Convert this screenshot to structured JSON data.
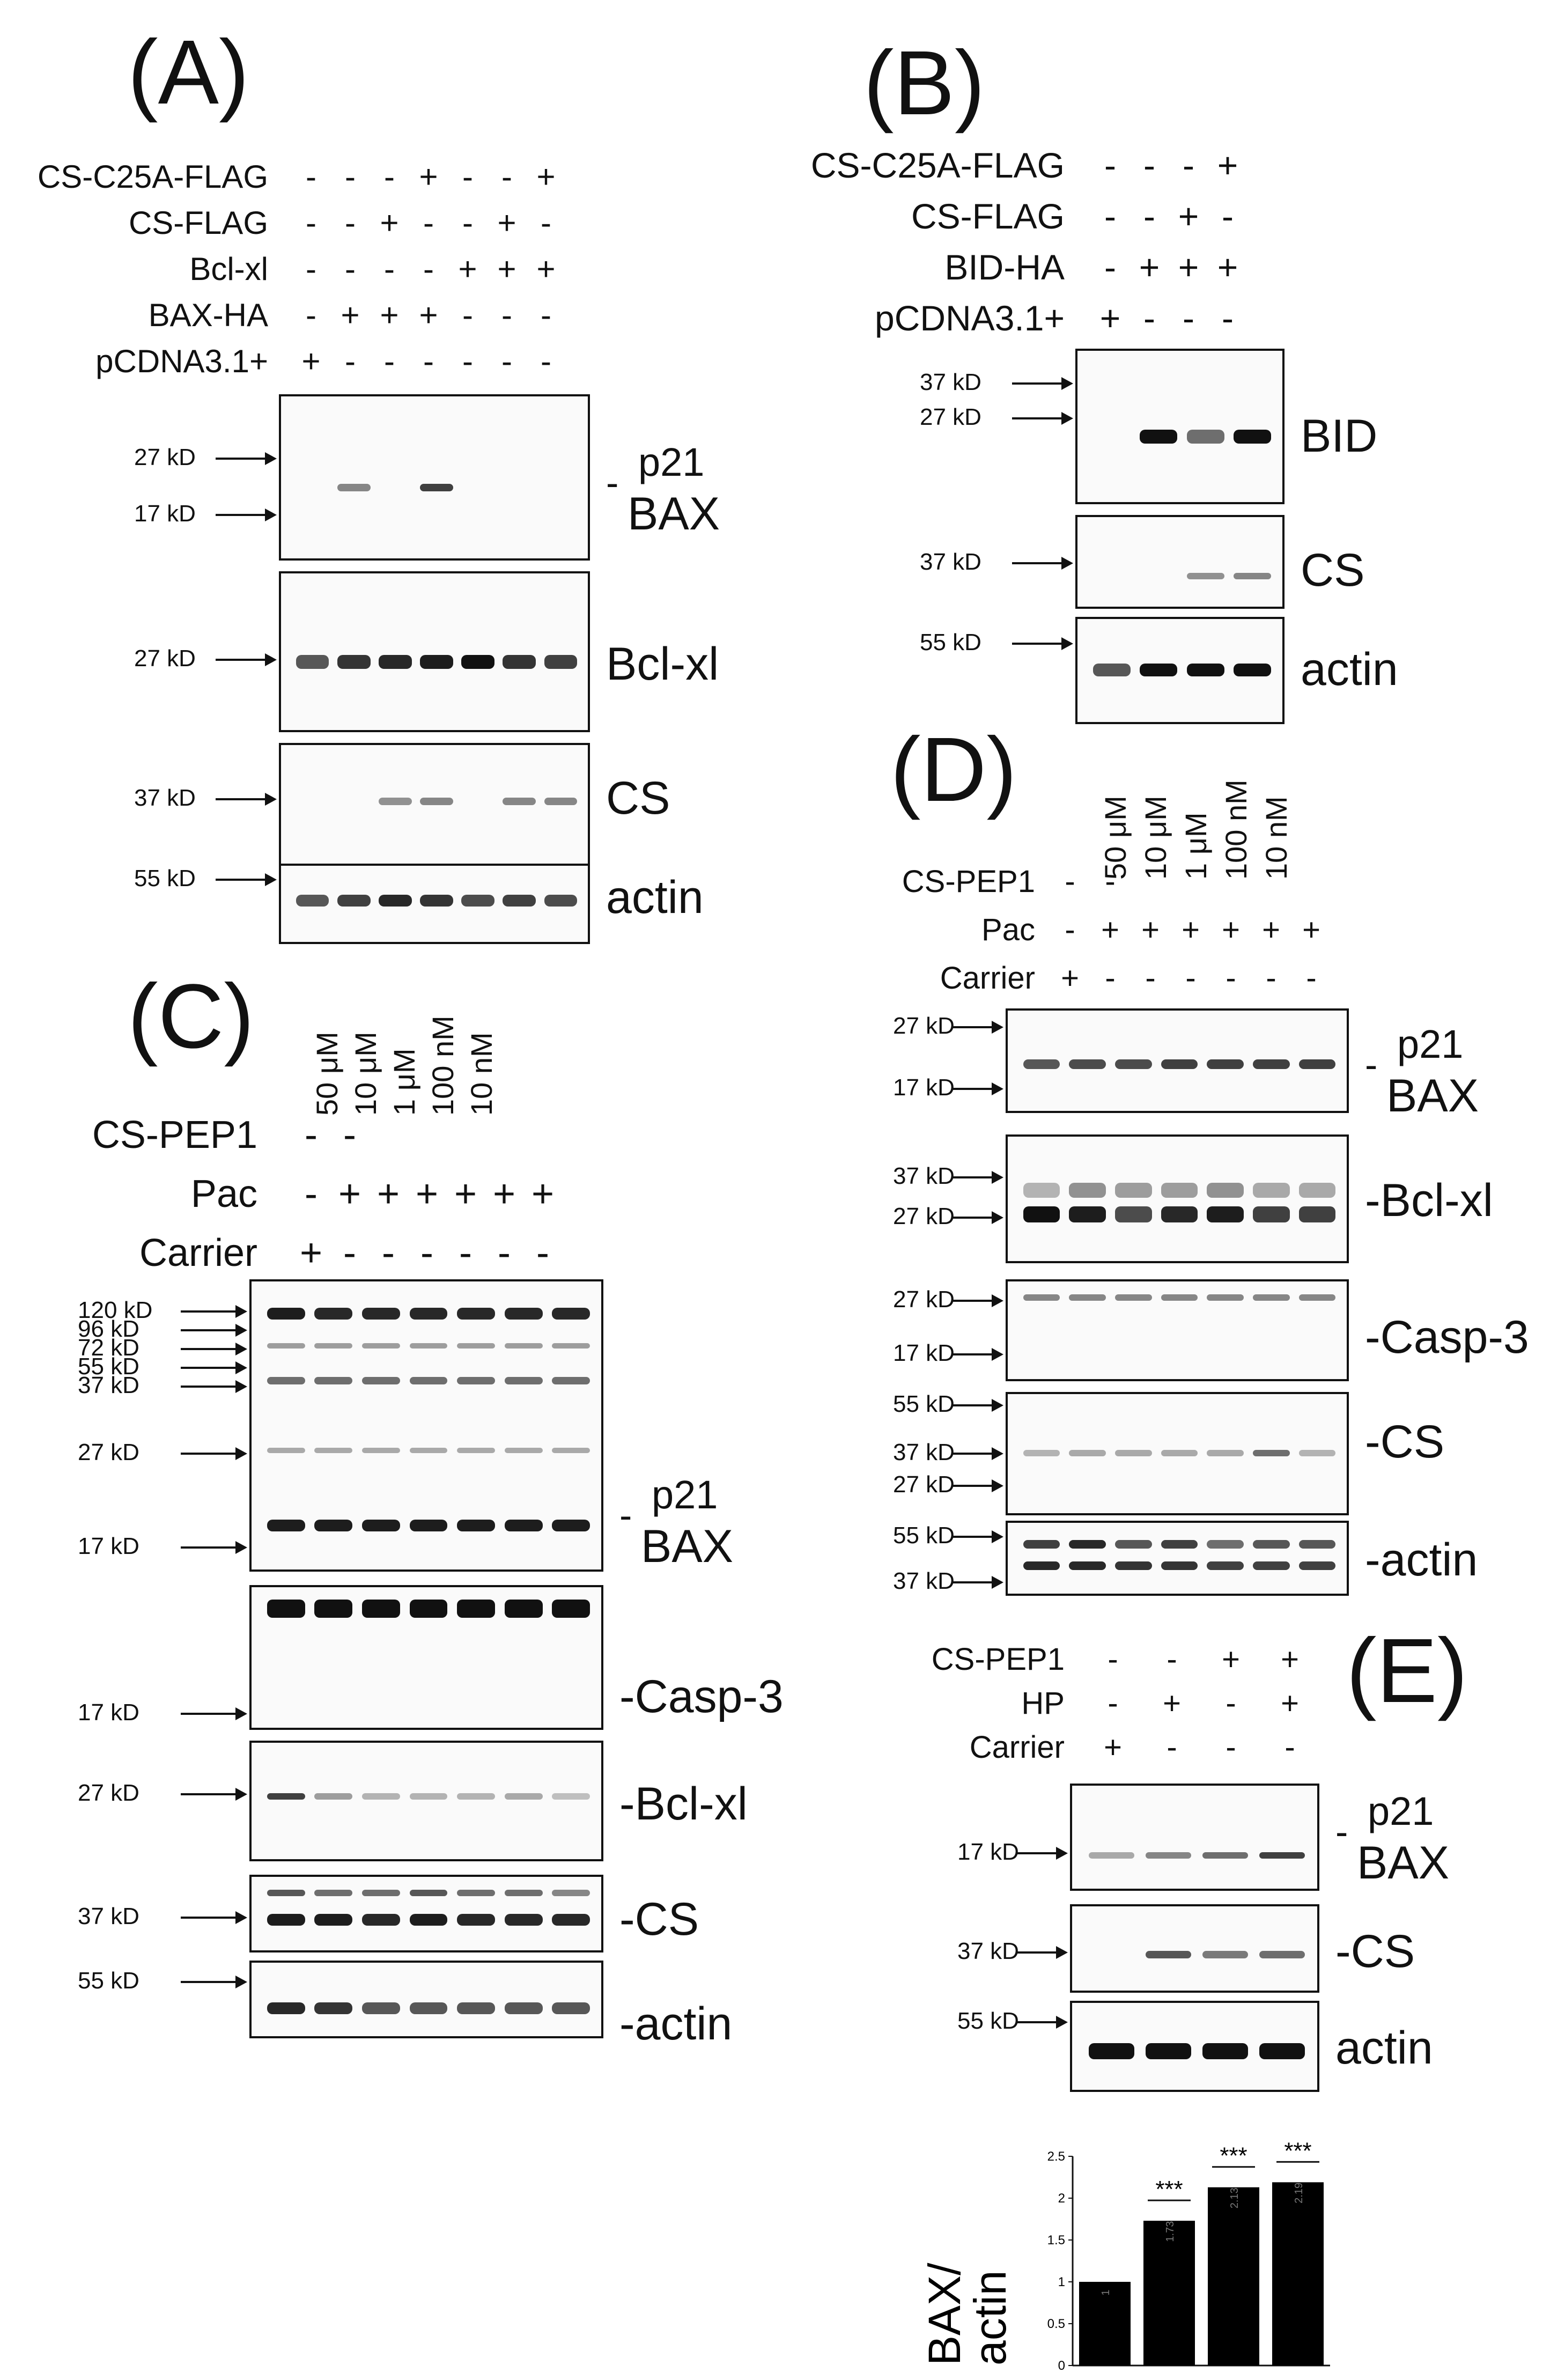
{
  "panels": {
    "A": {
      "label": "(A)",
      "rows": [
        {
          "name": "CS-C25A-FLAG",
          "signs": [
            "-",
            "-",
            "-",
            "+",
            "-",
            "-",
            "+"
          ]
        },
        {
          "name": "CS-FLAG",
          "signs": [
            "-",
            "-",
            "+",
            "-",
            "-",
            "+",
            "-"
          ]
        },
        {
          "name": "Bcl-xl",
          "signs": [
            "-",
            "-",
            "-",
            "-",
            "+",
            "+",
            "+"
          ]
        },
        {
          "name": "BAX-HA",
          "signs": [
            "-",
            "+",
            "+",
            "+",
            "-",
            "-",
            "-"
          ]
        },
        {
          "name": "pCDNA3.1+",
          "signs": [
            "+",
            "-",
            "-",
            "-",
            "-",
            "-",
            "-"
          ]
        }
      ],
      "blots": [
        {
          "markers": [
            "27 kD",
            "17 kD"
          ],
          "label_top": "p21",
          "label": "BAX",
          "dash": "-"
        },
        {
          "markers": [
            "27 kD"
          ],
          "label": "Bcl-xl"
        },
        {
          "markers": [
            "37 kD"
          ],
          "label": "CS"
        },
        {
          "markers": [
            "55 kD"
          ],
          "label": "actin"
        }
      ]
    },
    "B": {
      "label": "(B)",
      "rows": [
        {
          "name": "CS-C25A-FLAG",
          "signs": [
            "-",
            "-",
            "-",
            "+"
          ]
        },
        {
          "name": "CS-FLAG",
          "signs": [
            "-",
            "-",
            "+",
            "-"
          ]
        },
        {
          "name": "BID-HA",
          "signs": [
            "-",
            "+",
            "+",
            "+"
          ]
        },
        {
          "name": "pCDNA3.1+",
          "signs": [
            "+",
            "-",
            "-",
            "-"
          ]
        }
      ],
      "blots": [
        {
          "markers": [
            "37 kD",
            "27 kD"
          ],
          "label": "BID"
        },
        {
          "markers": [
            "37 kD"
          ],
          "label": "CS"
        },
        {
          "markers": [
            "55 kD"
          ],
          "label": "actin"
        }
      ]
    },
    "C": {
      "label": "(C)",
      "concentrations": [
        "50 μM",
        "10 μM",
        "1 μM",
        "100 nM",
        "10 nM"
      ],
      "rows": [
        {
          "name": "CS-PEP1",
          "signs": [
            "-",
            "-",
            "",
            "",
            "",
            "",
            ""
          ]
        },
        {
          "name": "Pac",
          "signs": [
            "-",
            "+",
            "+",
            "+",
            "+",
            "+",
            "+"
          ]
        },
        {
          "name": "Carrier",
          "signs": [
            "+",
            "-",
            "-",
            "-",
            "-",
            "-",
            "-"
          ]
        }
      ],
      "blots": [
        {
          "markers": [
            "120 kD",
            "96 kD",
            "72 kD",
            "55 kD",
            "37 kD",
            "27 kD",
            "17 kD"
          ],
          "label_top": "p21",
          "label": "BAX",
          "dash": "-"
        },
        {
          "markers": [
            "17 kD"
          ],
          "label": "-Casp-3"
        },
        {
          "markers": [
            "27 kD"
          ],
          "label": "-Bcl-xl"
        },
        {
          "markers": [
            "37 kD"
          ],
          "label": "-CS"
        },
        {
          "markers": [
            "55 kD"
          ],
          "label": "-actin"
        }
      ]
    },
    "D": {
      "label": "(D)",
      "concentrations": [
        "50 μM",
        "10 μM",
        "1 μM",
        "100 nM",
        "10 nM"
      ],
      "rows": [
        {
          "name": "CS-PEP1",
          "signs": [
            "-",
            "-",
            "",
            "",
            "",
            "",
            ""
          ]
        },
        {
          "name": "Pac",
          "signs": [
            "-",
            "+",
            "+",
            "+",
            "+",
            "+",
            "+"
          ]
        },
        {
          "name": "Carrier",
          "signs": [
            "+",
            "-",
            "-",
            "-",
            "-",
            "-",
            "-"
          ]
        }
      ],
      "blots": [
        {
          "markers": [
            "27 kD",
            "17 kD"
          ],
          "label_top": "p21",
          "label": "BAX",
          "dash": "-"
        },
        {
          "markers": [
            "37 kD",
            "27 kD"
          ],
          "label": "-Bcl-xl"
        },
        {
          "markers": [
            "27 kD",
            "17 kD"
          ],
          "label": "-Casp-3"
        },
        {
          "markers": [
            "55 kD",
            "37 kD",
            "27 kD"
          ],
          "label": "-CS"
        },
        {
          "markers": [
            "55 kD",
            "37 kD"
          ],
          "label": "-actin"
        }
      ]
    },
    "E": {
      "label": "(E)",
      "rows": [
        {
          "name": "CS-PEP1",
          "signs": [
            "-",
            "-",
            "+",
            "+"
          ]
        },
        {
          "name": "HP",
          "signs": [
            "-",
            "+",
            "-",
            "+"
          ]
        },
        {
          "name": "Carrier",
          "signs": [
            "+",
            "-",
            "-",
            "-"
          ]
        }
      ],
      "blots": [
        {
          "markers": [
            "17 kD"
          ],
          "label_top": "p21",
          "label": "BAX",
          "dash": "-"
        },
        {
          "markers": [
            "37 kD"
          ],
          "label": "-CS"
        },
        {
          "markers": [
            "55 kD"
          ],
          "label": "actin"
        }
      ]
    }
  },
  "chart_data": {
    "type": "bar",
    "ylabel_line1": "BAX/",
    "ylabel_line2": "actin",
    "categories": [
      "",
      "",
      "",
      ""
    ],
    "values": [
      1,
      1.73,
      2.13,
      2.19
    ],
    "value_labels": [
      "1",
      "1.73",
      "2.13",
      "2.19"
    ],
    "significance": [
      "",
      "***",
      "***",
      "***"
    ],
    "yticks": [
      "0",
      "0.5",
      "1",
      "1.5",
      "2",
      "2.5"
    ],
    "ylim": [
      0,
      2.5
    ],
    "bar_color": "#000000"
  }
}
